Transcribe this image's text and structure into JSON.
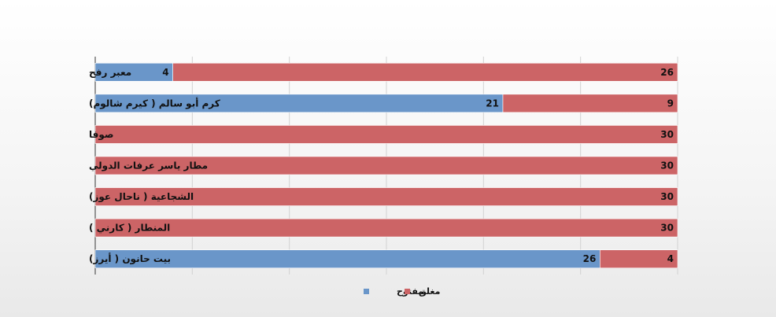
{
  "chart_data": {
    "type": "bar",
    "orientation": "horizontal",
    "stacked": true,
    "categories": [
      "معبر رفح",
      "كرم أبو سالم ( كيرم شالوم)",
      "صوفا",
      "مطار ياسر عرفات الدولي",
      "الشجاعية ( ناحال عوز)",
      "المنطار ( كارني )",
      "بيت حانون ( أيرز)"
    ],
    "series": [
      {
        "name": "مفتوح",
        "color": "#6a96c9",
        "values": [
          4,
          21,
          0,
          0,
          0,
          0,
          26
        ]
      },
      {
        "name": "مغلق",
        "color": "#cc6466",
        "values": [
          26,
          9,
          30,
          30,
          30,
          30,
          4
        ]
      }
    ],
    "xlim": [
      0,
      30
    ],
    "grid": true,
    "legend_position": "bottom"
  }
}
